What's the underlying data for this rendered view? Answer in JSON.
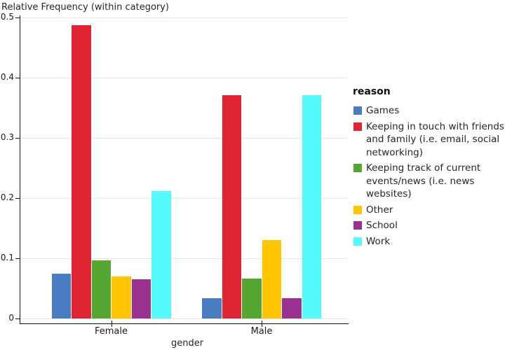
{
  "title": "Relative Frequency (within category)",
  "x_axis": {
    "label": "gender",
    "categories": [
      "Female",
      "Male"
    ]
  },
  "y_axis": {
    "ticks": [
      "0.5",
      "0.4",
      "0.3",
      "0.2",
      "0.1",
      "0"
    ]
  },
  "legend": {
    "title": "reason",
    "items": [
      {
        "label": "Games"
      },
      {
        "label": "Keeping in touch with friends\nand family (i.e. email, social\nnetworking)"
      },
      {
        "label": "Keeping track of current\nevents/news (i.e. news\nwebsites)"
      },
      {
        "label": "Other"
      },
      {
        "label": "School"
      },
      {
        "label": "Work"
      }
    ]
  },
  "chart_data": {
    "type": "bar",
    "title": "Relative Frequency (within category)",
    "xlabel": "gender",
    "ylabel": "Relative Frequency (within category)",
    "categories": [
      "Female",
      "Male"
    ],
    "series": [
      {
        "name": "Games",
        "color": "#4a7cc2",
        "values": [
          0.075,
          0.034
        ]
      },
      {
        "name": "Keeping in touch with friends and family (i.e. email, social networking)",
        "color": "#e02433",
        "values": [
          0.487,
          0.371
        ]
      },
      {
        "name": "Keeping track of current events/news (i.e. news websites)",
        "color": "#56a632",
        "values": [
          0.096,
          0.066
        ]
      },
      {
        "name": "Other",
        "color": "#ffc503",
        "values": [
          0.07,
          0.13
        ]
      },
      {
        "name": "School",
        "color": "#993191",
        "values": [
          0.065,
          0.034
        ]
      },
      {
        "name": "Work",
        "color": "#55fbfc",
        "values": [
          0.212,
          0.371
        ]
      }
    ],
    "ylim": [
      0,
      0.5
    ],
    "y_tick_step": 0.1,
    "grid": true,
    "legend_position": "right"
  }
}
